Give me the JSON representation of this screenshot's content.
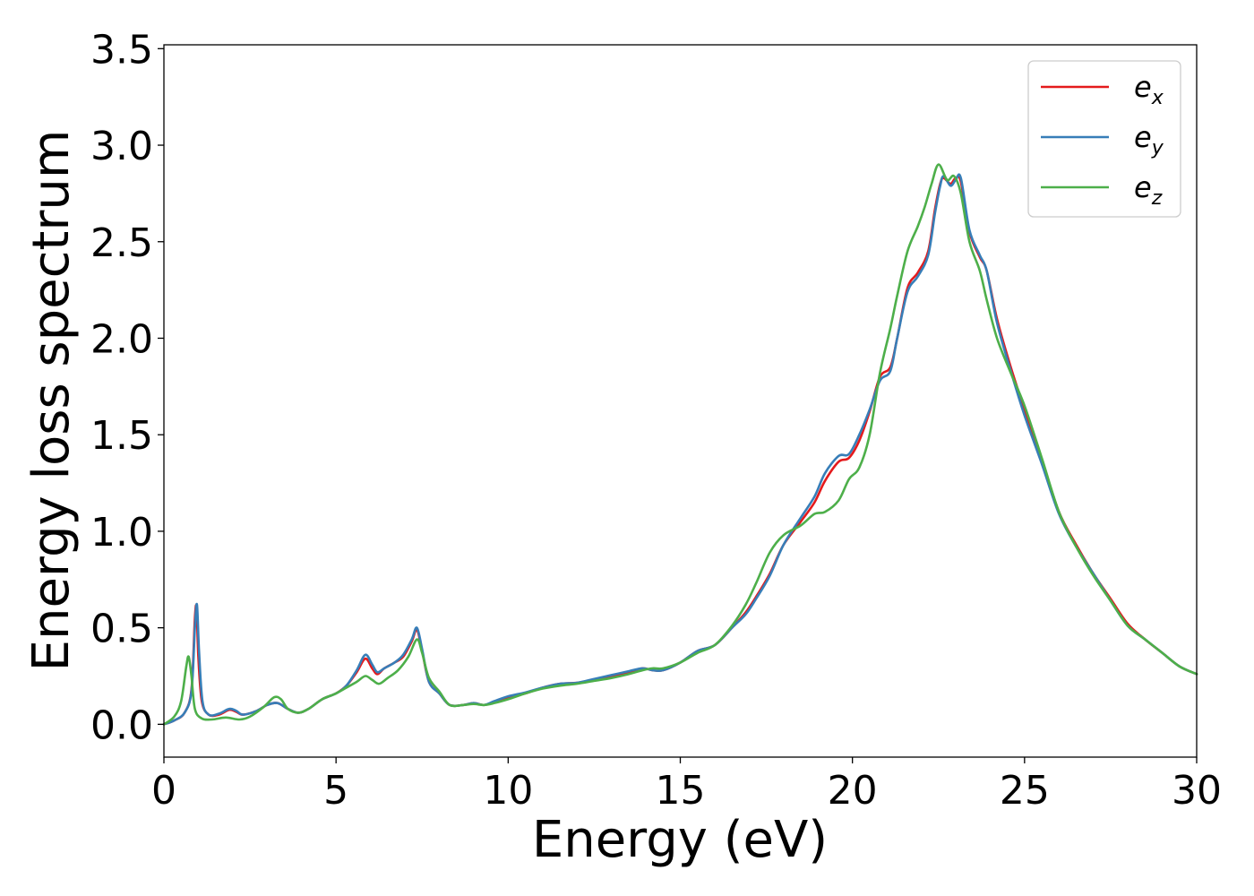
{
  "chart_data": {
    "type": "line",
    "title": "",
    "xlabel": "Energy (eV)",
    "ylabel": "Energy loss spectrum",
    "xlim": [
      0,
      30
    ],
    "ylim": [
      -0.17,
      3.52
    ],
    "xticks": [
      "0",
      "5",
      "10",
      "15",
      "20",
      "25",
      "30"
    ],
    "yticks": [
      "0.0",
      "0.5",
      "1.0",
      "1.5",
      "2.0",
      "2.5",
      "3.0",
      "3.5"
    ],
    "grid": false,
    "legend_position": "top-right",
    "series": [
      {
        "name": "e_x",
        "label_base": "e",
        "label_sub": "x",
        "color": "#e41a1c",
        "points": [
          [
            0,
            0.0
          ],
          [
            0.3,
            0.02
          ],
          [
            0.6,
            0.06
          ],
          [
            0.8,
            0.18
          ],
          [
            0.9,
            0.55
          ],
          [
            0.95,
            0.6
          ],
          [
            1.0,
            0.35
          ],
          [
            1.1,
            0.12
          ],
          [
            1.3,
            0.05
          ],
          [
            1.6,
            0.05
          ],
          [
            1.9,
            0.075
          ],
          [
            2.1,
            0.065
          ],
          [
            2.3,
            0.05
          ],
          [
            2.7,
            0.07
          ],
          [
            3.0,
            0.1
          ],
          [
            3.3,
            0.11
          ],
          [
            3.6,
            0.08
          ],
          [
            3.9,
            0.06
          ],
          [
            4.2,
            0.08
          ],
          [
            4.6,
            0.13
          ],
          [
            5.0,
            0.16
          ],
          [
            5.3,
            0.2
          ],
          [
            5.6,
            0.27
          ],
          [
            5.85,
            0.34
          ],
          [
            6.05,
            0.29
          ],
          [
            6.2,
            0.26
          ],
          [
            6.4,
            0.29
          ],
          [
            6.7,
            0.32
          ],
          [
            6.95,
            0.35
          ],
          [
            7.2,
            0.43
          ],
          [
            7.35,
            0.49
          ],
          [
            7.5,
            0.38
          ],
          [
            7.7,
            0.22
          ],
          [
            8.0,
            0.16
          ],
          [
            8.3,
            0.1
          ],
          [
            8.7,
            0.1
          ],
          [
            9.0,
            0.11
          ],
          [
            9.3,
            0.1
          ],
          [
            9.6,
            0.115
          ],
          [
            10.0,
            0.14
          ],
          [
            10.5,
            0.16
          ],
          [
            11.0,
            0.19
          ],
          [
            11.5,
            0.21
          ],
          [
            12.0,
            0.215
          ],
          [
            12.5,
            0.23
          ],
          [
            13.0,
            0.25
          ],
          [
            13.5,
            0.27
          ],
          [
            13.9,
            0.29
          ],
          [
            14.2,
            0.28
          ],
          [
            14.5,
            0.28
          ],
          [
            15.0,
            0.32
          ],
          [
            15.5,
            0.38
          ],
          [
            16.0,
            0.41
          ],
          [
            16.5,
            0.5
          ],
          [
            16.9,
            0.58
          ],
          [
            17.2,
            0.66
          ],
          [
            17.6,
            0.78
          ],
          [
            18.0,
            0.93
          ],
          [
            18.5,
            1.05
          ],
          [
            18.9,
            1.15
          ],
          [
            19.2,
            1.26
          ],
          [
            19.6,
            1.36
          ],
          [
            19.9,
            1.38
          ],
          [
            20.2,
            1.47
          ],
          [
            20.5,
            1.62
          ],
          [
            20.8,
            1.8
          ],
          [
            21.1,
            1.85
          ],
          [
            21.3,
            2.0
          ],
          [
            21.6,
            2.26
          ],
          [
            21.9,
            2.34
          ],
          [
            22.2,
            2.45
          ],
          [
            22.4,
            2.67
          ],
          [
            22.55,
            2.8
          ],
          [
            22.65,
            2.83
          ],
          [
            22.85,
            2.8
          ],
          [
            23.0,
            2.83
          ],
          [
            23.15,
            2.81
          ],
          [
            23.4,
            2.55
          ],
          [
            23.7,
            2.42
          ],
          [
            23.9,
            2.35
          ],
          [
            24.2,
            2.1
          ],
          [
            24.6,
            1.85
          ],
          [
            25.0,
            1.63
          ],
          [
            25.5,
            1.37
          ],
          [
            26.0,
            1.1
          ],
          [
            26.5,
            0.93
          ],
          [
            27.0,
            0.78
          ],
          [
            27.5,
            0.65
          ],
          [
            28.0,
            0.52
          ],
          [
            28.5,
            0.44
          ],
          [
            29.0,
            0.37
          ],
          [
            29.5,
            0.3
          ],
          [
            30.0,
            0.26
          ]
        ]
      },
      {
        "name": "e_y",
        "label_base": "e",
        "label_sub": "y",
        "color": "#377eb8",
        "points": [
          [
            0,
            0.0
          ],
          [
            0.3,
            0.02
          ],
          [
            0.6,
            0.06
          ],
          [
            0.8,
            0.17
          ],
          [
            0.9,
            0.5
          ],
          [
            0.96,
            0.62
          ],
          [
            1.02,
            0.38
          ],
          [
            1.12,
            0.12
          ],
          [
            1.3,
            0.05
          ],
          [
            1.6,
            0.055
          ],
          [
            1.9,
            0.08
          ],
          [
            2.1,
            0.07
          ],
          [
            2.3,
            0.05
          ],
          [
            2.7,
            0.07
          ],
          [
            3.0,
            0.1
          ],
          [
            3.3,
            0.11
          ],
          [
            3.6,
            0.08
          ],
          [
            3.9,
            0.06
          ],
          [
            4.2,
            0.08
          ],
          [
            4.6,
            0.13
          ],
          [
            5.0,
            0.16
          ],
          [
            5.3,
            0.2
          ],
          [
            5.6,
            0.28
          ],
          [
            5.85,
            0.36
          ],
          [
            6.05,
            0.31
          ],
          [
            6.2,
            0.27
          ],
          [
            6.4,
            0.29
          ],
          [
            6.7,
            0.32
          ],
          [
            6.95,
            0.36
          ],
          [
            7.2,
            0.44
          ],
          [
            7.35,
            0.5
          ],
          [
            7.5,
            0.39
          ],
          [
            7.7,
            0.22
          ],
          [
            8.0,
            0.16
          ],
          [
            8.3,
            0.1
          ],
          [
            8.7,
            0.1
          ],
          [
            9.0,
            0.11
          ],
          [
            9.3,
            0.1
          ],
          [
            9.6,
            0.12
          ],
          [
            10.0,
            0.145
          ],
          [
            10.5,
            0.165
          ],
          [
            11.0,
            0.19
          ],
          [
            11.5,
            0.21
          ],
          [
            12.0,
            0.215
          ],
          [
            12.5,
            0.235
          ],
          [
            13.0,
            0.255
          ],
          [
            13.5,
            0.275
          ],
          [
            13.9,
            0.29
          ],
          [
            14.2,
            0.28
          ],
          [
            14.5,
            0.28
          ],
          [
            15.0,
            0.32
          ],
          [
            15.5,
            0.38
          ],
          [
            16.0,
            0.41
          ],
          [
            16.5,
            0.5
          ],
          [
            16.9,
            0.57
          ],
          [
            17.2,
            0.65
          ],
          [
            17.6,
            0.77
          ],
          [
            18.0,
            0.93
          ],
          [
            18.5,
            1.07
          ],
          [
            18.9,
            1.18
          ],
          [
            19.2,
            1.3
          ],
          [
            19.6,
            1.39
          ],
          [
            19.9,
            1.4
          ],
          [
            20.2,
            1.5
          ],
          [
            20.5,
            1.63
          ],
          [
            20.8,
            1.78
          ],
          [
            21.1,
            1.83
          ],
          [
            21.3,
            2.0
          ],
          [
            21.6,
            2.24
          ],
          [
            21.9,
            2.32
          ],
          [
            22.2,
            2.43
          ],
          [
            22.4,
            2.65
          ],
          [
            22.55,
            2.79
          ],
          [
            22.65,
            2.84
          ],
          [
            22.85,
            2.79
          ],
          [
            23.0,
            2.82
          ],
          [
            23.15,
            2.83
          ],
          [
            23.4,
            2.56
          ],
          [
            23.7,
            2.43
          ],
          [
            23.9,
            2.35
          ],
          [
            24.2,
            2.08
          ],
          [
            24.6,
            1.83
          ],
          [
            25.0,
            1.6
          ],
          [
            25.5,
            1.35
          ],
          [
            26.0,
            1.09
          ],
          [
            26.5,
            0.92
          ],
          [
            27.0,
            0.78
          ],
          [
            27.5,
            0.64
          ],
          [
            28.0,
            0.51
          ],
          [
            28.5,
            0.44
          ],
          [
            29.0,
            0.37
          ],
          [
            29.5,
            0.3
          ],
          [
            30.0,
            0.26
          ]
        ]
      },
      {
        "name": "e_z",
        "label_base": "e",
        "label_sub": "z",
        "color": "#4daf4a",
        "points": [
          [
            0,
            0.0
          ],
          [
            0.3,
            0.04
          ],
          [
            0.5,
            0.12
          ],
          [
            0.65,
            0.3
          ],
          [
            0.72,
            0.35
          ],
          [
            0.8,
            0.25
          ],
          [
            0.9,
            0.08
          ],
          [
            1.1,
            0.03
          ],
          [
            1.4,
            0.025
          ],
          [
            1.8,
            0.035
          ],
          [
            2.2,
            0.025
          ],
          [
            2.5,
            0.04
          ],
          [
            2.9,
            0.09
          ],
          [
            3.2,
            0.14
          ],
          [
            3.4,
            0.13
          ],
          [
            3.6,
            0.08
          ],
          [
            3.9,
            0.06
          ],
          [
            4.2,
            0.08
          ],
          [
            4.6,
            0.13
          ],
          [
            5.0,
            0.16
          ],
          [
            5.3,
            0.19
          ],
          [
            5.6,
            0.22
          ],
          [
            5.85,
            0.25
          ],
          [
            6.05,
            0.23
          ],
          [
            6.25,
            0.21
          ],
          [
            6.5,
            0.24
          ],
          [
            6.8,
            0.28
          ],
          [
            7.1,
            0.35
          ],
          [
            7.35,
            0.44
          ],
          [
            7.5,
            0.37
          ],
          [
            7.7,
            0.24
          ],
          [
            8.0,
            0.17
          ],
          [
            8.3,
            0.1
          ],
          [
            8.7,
            0.1
          ],
          [
            9.0,
            0.105
          ],
          [
            9.3,
            0.1
          ],
          [
            9.6,
            0.11
          ],
          [
            10.0,
            0.13
          ],
          [
            10.5,
            0.16
          ],
          [
            11.0,
            0.185
          ],
          [
            11.5,
            0.2
          ],
          [
            12.0,
            0.21
          ],
          [
            12.5,
            0.225
          ],
          [
            13.0,
            0.24
          ],
          [
            13.5,
            0.26
          ],
          [
            13.9,
            0.28
          ],
          [
            14.2,
            0.29
          ],
          [
            14.5,
            0.29
          ],
          [
            15.0,
            0.32
          ],
          [
            15.5,
            0.37
          ],
          [
            16.0,
            0.41
          ],
          [
            16.5,
            0.51
          ],
          [
            16.9,
            0.62
          ],
          [
            17.2,
            0.73
          ],
          [
            17.6,
            0.89
          ],
          [
            18.0,
            0.98
          ],
          [
            18.5,
            1.03
          ],
          [
            18.9,
            1.09
          ],
          [
            19.2,
            1.1
          ],
          [
            19.6,
            1.16
          ],
          [
            19.9,
            1.27
          ],
          [
            20.2,
            1.33
          ],
          [
            20.5,
            1.5
          ],
          [
            20.8,
            1.82
          ],
          [
            21.1,
            2.05
          ],
          [
            21.3,
            2.22
          ],
          [
            21.6,
            2.45
          ],
          [
            21.9,
            2.58
          ],
          [
            22.1,
            2.68
          ],
          [
            22.3,
            2.8
          ],
          [
            22.5,
            2.9
          ],
          [
            22.75,
            2.82
          ],
          [
            22.95,
            2.84
          ],
          [
            23.15,
            2.75
          ],
          [
            23.4,
            2.5
          ],
          [
            23.7,
            2.35
          ],
          [
            23.9,
            2.2
          ],
          [
            24.2,
            2.0
          ],
          [
            24.6,
            1.82
          ],
          [
            25.0,
            1.65
          ],
          [
            25.5,
            1.38
          ],
          [
            26.0,
            1.1
          ],
          [
            26.5,
            0.92
          ],
          [
            27.0,
            0.77
          ],
          [
            27.5,
            0.64
          ],
          [
            28.0,
            0.51
          ],
          [
            28.5,
            0.44
          ],
          [
            29.0,
            0.37
          ],
          [
            29.5,
            0.3
          ],
          [
            30.0,
            0.26
          ]
        ]
      }
    ]
  }
}
